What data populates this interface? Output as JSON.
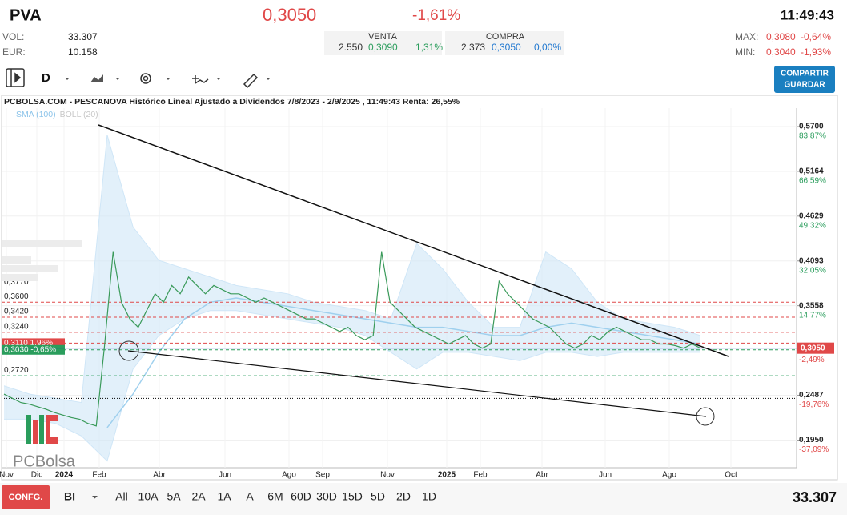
{
  "header": {
    "symbol": "PVA",
    "price": "0,3050",
    "change": "-1,61%",
    "time": "11:49:43",
    "vol_label": "VOL:",
    "vol": "33.307",
    "eur_label": "EUR:",
    "eur": "10.158",
    "venta": {
      "title": "VENTA",
      "qty": "2.550",
      "price": "0,3090",
      "pct": "1,31%"
    },
    "compra": {
      "title": "COMPRA",
      "qty": "2.373",
      "price": "0,3050",
      "pct": "0,00%"
    },
    "max_label": "MAX:",
    "max": "0,3080",
    "max_pct": "-0,64%",
    "min_label": "MIN:",
    "min": "0,3040",
    "min_pct": "-1,93%"
  },
  "toolbar": {
    "period": "D",
    "button": [
      "COMPARTIR",
      "GUARDAR"
    ]
  },
  "chart_data": {
    "type": "line",
    "title": "PCBOLSA.COM - PESCANOVA Histórico Lineal Ajustado a Dividendos 7/8/2023 - 2/9/2025 , 11:49:43 Renta: 26,55%",
    "watermark": "PCBolsa",
    "x_labels": [
      "Nov",
      "Dic",
      "2024",
      "Feb",
      "Abr",
      "Jun",
      "Ago",
      "Sep",
      "Nov",
      "2025",
      "Feb",
      "Abr",
      "Jun",
      "Ago",
      "Oct"
    ],
    "ylim": [
      0.162,
      0.592
    ],
    "yticks": [
      {
        "value": 0.57,
        "label": "0,5700"
      },
      {
        "value": 0.5164,
        "label": "0,5164"
      },
      {
        "value": 0.4629,
        "label": "0,4629"
      },
      {
        "value": 0.4093,
        "label": "0,4093"
      },
      {
        "value": 0.3558,
        "label": "0,3558"
      },
      {
        "value": 0.2487,
        "label": "0,2487"
      },
      {
        "value": 0.195,
        "label": "0,1950"
      }
    ],
    "pct_ticks": [
      {
        "value": 0.57,
        "label": "83,87%"
      },
      {
        "value": 0.5164,
        "label": "66,59%"
      },
      {
        "value": 0.4629,
        "label": "49,32%"
      },
      {
        "value": 0.4093,
        "label": "32,05%"
      },
      {
        "value": 0.3558,
        "label": "14,77%"
      },
      {
        "value": 0.3022,
        "label": "-2,49%"
      },
      {
        "value": 0.2487,
        "label": "-19,76%"
      },
      {
        "value": 0.195,
        "label": "-37,09%"
      }
    ],
    "last_price": {
      "value": 0.305,
      "label": "0,3050",
      "color": "#e04848"
    },
    "levels": [
      {
        "value": 0.377,
        "label": "0,3770",
        "color": "#e04848",
        "style": "dashed"
      },
      {
        "value": 0.36,
        "label": "0,3600",
        "color": "#e04848",
        "style": "dashed"
      },
      {
        "value": 0.342,
        "label": "0,3420",
        "color": "#e04848",
        "style": "dashed"
      },
      {
        "value": 0.324,
        "label": "0,3240",
        "color": "#e04848",
        "style": "dashed"
      },
      {
        "value": 0.311,
        "label": "0,3110 1,96%",
        "color": "#e04848",
        "style": "dashed",
        "boxed": true
      },
      {
        "value": 0.303,
        "label": "0,3030 -0,65%",
        "color": "#2a9d5c",
        "style": "dashed",
        "boxed": true
      },
      {
        "value": 0.272,
        "label": "0,2720",
        "color": "#2a9d5c",
        "style": "dashed"
      },
      {
        "value": 0.245,
        "color": "#000000",
        "style": "dotted"
      }
    ],
    "price": {
      "color": "#3a9a5a",
      "values": [
        0.25,
        0.245,
        0.24,
        0.238,
        0.235,
        0.232,
        0.228,
        0.225,
        0.222,
        0.22,
        0.215,
        0.212,
        0.31,
        0.42,
        0.36,
        0.34,
        0.33,
        0.35,
        0.37,
        0.36,
        0.38,
        0.37,
        0.39,
        0.38,
        0.37,
        0.38,
        0.375,
        0.37,
        0.37,
        0.365,
        0.36,
        0.365,
        0.36,
        0.355,
        0.35,
        0.345,
        0.34,
        0.34,
        0.335,
        0.33,
        0.325,
        0.33,
        0.32,
        0.315,
        0.32,
        0.42,
        0.36,
        0.35,
        0.34,
        0.33,
        0.325,
        0.32,
        0.315,
        0.31,
        0.315,
        0.32,
        0.31,
        0.305,
        0.31,
        0.385,
        0.37,
        0.36,
        0.35,
        0.34,
        0.335,
        0.33,
        0.32,
        0.31,
        0.305,
        0.31,
        0.32,
        0.315,
        0.325,
        0.33,
        0.325,
        0.32,
        0.315,
        0.315,
        0.31,
        0.31,
        0.308,
        0.305,
        0.31,
        0.305
      ]
    },
    "indicators": [
      {
        "name": "SMA (100)",
        "color": "#9fd0ee",
        "values": [
          null,
          null,
          null,
          null,
          0.21,
          0.25,
          0.3,
          0.34,
          0.36,
          0.365,
          0.36,
          0.355,
          0.35,
          0.345,
          0.34,
          0.335,
          0.33,
          0.33,
          0.325,
          0.32,
          0.32,
          0.33,
          0.335,
          0.33,
          0.325,
          0.32,
          0.315,
          0.31
        ]
      },
      {
        "name": "BOLL (20)",
        "color": "#cfe6f7",
        "upper": [
          0.26,
          0.25,
          0.245,
          0.24,
          0.56,
          0.45,
          0.41,
          0.4,
          0.39,
          0.38,
          0.375,
          0.37,
          0.36,
          0.355,
          0.35,
          0.34,
          0.43,
          0.4,
          0.36,
          0.33,
          0.33,
          0.42,
          0.4,
          0.36,
          0.34,
          0.335,
          0.33,
          0.32
        ],
        "lower": [
          0.22,
          0.22,
          0.215,
          0.2,
          0.17,
          0.28,
          0.32,
          0.34,
          0.35,
          0.35,
          0.345,
          0.34,
          0.335,
          0.33,
          0.32,
          0.3,
          0.28,
          0.3,
          0.3,
          0.295,
          0.29,
          0.3,
          0.3,
          0.295,
          0.3,
          0.3,
          0.3,
          0.3
        ]
      }
    ]
  },
  "footer": {
    "config": "CONFG.",
    "scale": "BI",
    "ranges": [
      "All",
      "10A",
      "5A",
      "2A",
      "1A",
      "A",
      "6M",
      "60D",
      "30D",
      "15D",
      "5D",
      "2D",
      "1D"
    ],
    "volume": "33.307"
  }
}
